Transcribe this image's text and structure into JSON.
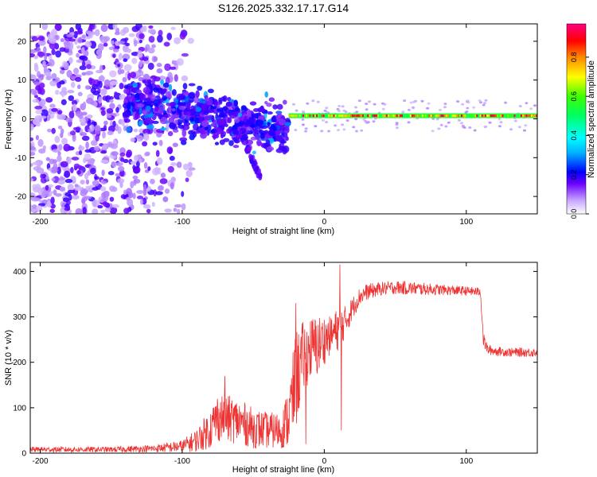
{
  "title": "S126.2025.332.17.17.G14",
  "chart_data": [
    {
      "id": "spectrogram",
      "type": "heatmap",
      "xlabel": "Height of straight line (km)",
      "ylabel": "Frequency (Hz)",
      "xlim": [
        -207,
        150
      ],
      "ylim": [
        -24.5,
        24.5
      ],
      "xticks": [
        -200,
        -100,
        0,
        100
      ],
      "xtick_labels": [
        "-200",
        "-100",
        "0",
        "100"
      ],
      "yticks": [
        -20,
        -10,
        0,
        10,
        20
      ],
      "ytick_labels": [
        "-20",
        "-10",
        "0",
        "10",
        "20"
      ],
      "colorbar": {
        "label": "Normalized spectral amplitude",
        "range": [
          0,
          0.97
        ],
        "ticks": [
          0,
          0.2,
          0.4,
          0.6,
          0.8
        ],
        "tick_labels": [
          "0.0",
          "0.2",
          "0.4",
          "0.6",
          "0.8"
        ]
      },
      "features": [
        {
          "region": "noise",
          "x": [
            -207,
            -110
          ],
          "freq_spread_hz": 24,
          "amplitude": [
            0.05,
            0.15
          ]
        },
        {
          "region": "transition",
          "x": [
            -140,
            -25
          ],
          "center_freq_hz": [
            5,
            -3
          ],
          "amplitude": [
            0.1,
            0.35
          ]
        },
        {
          "region": "branch",
          "x": [
            -55,
            -45
          ],
          "freq_hz": [
            -7,
            -15
          ],
          "amplitude": [
            0.1,
            0.2
          ]
        },
        {
          "region": "carrier",
          "x": [
            -25,
            150
          ],
          "center_freq_hz": 0.8,
          "amplitude": [
            0.5,
            0.95
          ]
        }
      ]
    },
    {
      "id": "snr",
      "type": "line",
      "xlabel": "Height of straight line (km)",
      "ylabel": "SNR (10 * v/v)",
      "xlim": [
        -207,
        150
      ],
      "ylim": [
        0,
        420
      ],
      "xticks": [
        -200,
        -100,
        0,
        100
      ],
      "xtick_labels": [
        "-200",
        "-100",
        "0",
        "100"
      ],
      "yticks": [
        0,
        100,
        200,
        300,
        400
      ],
      "ytick_labels": [
        "0",
        "100",
        "200",
        "300",
        "400"
      ],
      "series": [
        {
          "name": "SNR",
          "color": "#ee3333",
          "x": [
            -207,
            -150,
            -120,
            -100,
            -90,
            -80,
            -75,
            -60,
            -50,
            -40,
            -30,
            -25,
            -20,
            -15,
            -10,
            -5,
            0,
            5,
            10,
            15,
            20,
            25,
            30,
            40,
            50,
            60,
            80,
            100,
            110,
            112,
            115,
            120,
            130,
            150
          ],
          "mean": [
            8,
            8,
            10,
            15,
            28,
            55,
            80,
            70,
            55,
            50,
            50,
            80,
            160,
            210,
            230,
            235,
            250,
            260,
            275,
            290,
            320,
            345,
            355,
            362,
            365,
            363,
            360,
            357,
            355,
            250,
            228,
            225,
            222,
            222
          ],
          "amp": [
            6,
            6,
            8,
            14,
            25,
            45,
            55,
            50,
            45,
            40,
            40,
            70,
            110,
            80,
            70,
            70,
            55,
            40,
            50,
            35,
            25,
            20,
            18,
            15,
            15,
            15,
            12,
            10,
            10,
            15,
            12,
            10,
            10,
            10
          ],
          "spikes": [
            {
              "x": -70,
              "value": 170
            },
            {
              "x": -20,
              "value": 330
            },
            {
              "x": -13,
              "value": 20
            },
            {
              "x": 11,
              "value": 415
            },
            {
              "x": 12,
              "value": 50
            }
          ]
        }
      ]
    }
  ]
}
